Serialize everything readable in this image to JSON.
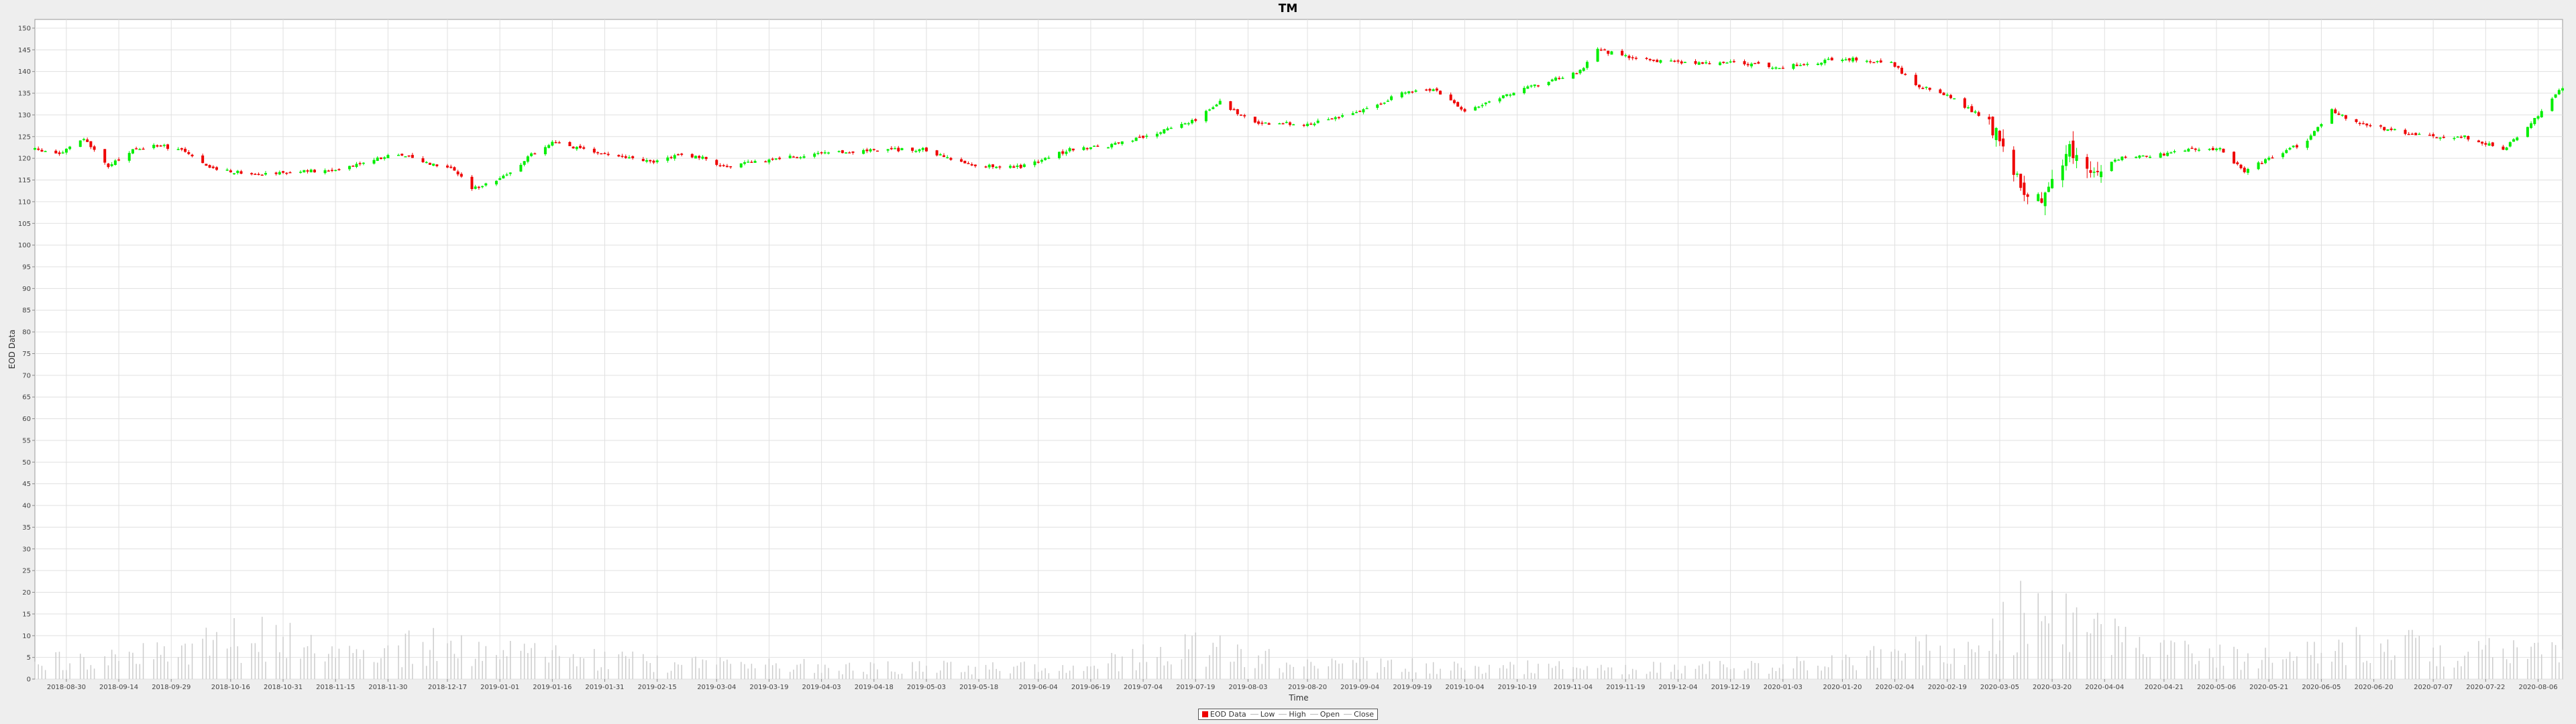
{
  "chart_data": {
    "type": "candlestick",
    "title": "TM",
    "xlabel": "Time",
    "ylabel": "EOD Data",
    "ylim": [
      0,
      152
    ],
    "yticks": [
      0,
      5,
      10,
      15,
      20,
      25,
      30,
      35,
      40,
      45,
      50,
      55,
      60,
      65,
      70,
      75,
      80,
      85,
      90,
      95,
      100,
      105,
      110,
      115,
      120,
      125,
      130,
      135,
      140,
      145,
      150
    ],
    "xlim": [
      "2018-08-21",
      "2020-08-13"
    ],
    "xticks": [
      "2018-08-30",
      "2018-09-14",
      "2018-09-29",
      "2018-10-16",
      "2018-10-31",
      "2018-11-15",
      "2018-11-30",
      "2018-12-17",
      "2019-01-01",
      "2019-01-16",
      "2019-01-31",
      "2019-02-15",
      "2019-03-04",
      "2019-03-19",
      "2019-04-03",
      "2019-04-18",
      "2019-05-03",
      "2019-05-18",
      "2019-06-04",
      "2019-06-19",
      "2019-07-04",
      "2019-07-19",
      "2019-08-03",
      "2019-08-20",
      "2019-09-04",
      "2019-09-19",
      "2019-10-04",
      "2019-10-19",
      "2019-11-04",
      "2019-11-19",
      "2019-12-04",
      "2019-12-19",
      "2020-01-03",
      "2020-01-20",
      "2020-02-04",
      "2020-02-19",
      "2020-03-05",
      "2020-03-20",
      "2020-04-04",
      "2020-04-21",
      "2020-05-06",
      "2020-05-21",
      "2020-06-05",
      "2020-06-20",
      "2020-07-07",
      "2020-07-22",
      "2020-08-06"
    ],
    "grid": true,
    "legend_position": "bottom-center",
    "legend": [
      "EOD Data",
      "Low",
      "High",
      "Open",
      "Close"
    ],
    "colors": {
      "up": "#00ee00",
      "down": "#ee0000",
      "volume": "#cccccc",
      "grid": "#e0e0e0"
    },
    "close_anchors": [
      [
        "2018-08-21",
        122
      ],
      [
        "2018-08-28",
        121
      ],
      [
        "2018-09-04",
        124.5
      ],
      [
        "2018-09-11",
        118
      ],
      [
        "2018-09-18",
        122
      ],
      [
        "2018-09-25",
        123
      ],
      [
        "2018-10-02",
        122
      ],
      [
        "2018-10-09",
        118
      ],
      [
        "2018-10-16",
        117
      ],
      [
        "2018-10-23",
        116.5
      ],
      [
        "2018-11-06",
        117
      ],
      [
        "2018-11-13",
        117
      ],
      [
        "2018-11-27",
        120
      ],
      [
        "2018-12-04",
        121
      ],
      [
        "2018-12-11",
        119
      ],
      [
        "2018-12-18",
        118
      ],
      [
        "2018-12-24",
        113
      ],
      [
        "2019-01-03",
        116
      ],
      [
        "2019-01-10",
        121
      ],
      [
        "2019-01-17",
        124
      ],
      [
        "2019-01-24",
        122
      ],
      [
        "2019-02-07",
        120
      ],
      [
        "2019-02-14",
        119
      ],
      [
        "2019-02-21",
        121
      ],
      [
        "2019-02-28",
        120
      ],
      [
        "2019-03-07",
        118
      ],
      [
        "2019-03-21",
        120
      ],
      [
        "2019-04-04",
        121
      ],
      [
        "2019-04-18",
        122
      ],
      [
        "2019-05-02",
        122
      ],
      [
        "2019-05-09",
        120
      ],
      [
        "2019-05-16",
        118.5
      ],
      [
        "2019-05-30",
        118
      ],
      [
        "2019-06-13",
        122
      ],
      [
        "2019-06-25",
        123
      ],
      [
        "2019-07-05",
        125
      ],
      [
        "2019-07-19",
        129
      ],
      [
        "2019-07-26",
        133
      ],
      [
        "2019-08-05",
        128
      ],
      [
        "2019-08-20",
        128
      ],
      [
        "2019-09-05",
        131
      ],
      [
        "2019-09-16",
        135
      ],
      [
        "2019-09-25",
        136
      ],
      [
        "2019-10-04",
        131
      ],
      [
        "2019-10-14",
        134
      ],
      [
        "2019-10-25",
        137
      ],
      [
        "2019-11-06",
        140
      ],
      [
        "2019-11-11",
        145
      ],
      [
        "2019-11-22",
        143
      ],
      [
        "2019-12-06",
        142
      ],
      [
        "2019-12-20",
        142
      ],
      [
        "2020-01-03",
        141
      ],
      [
        "2020-01-20",
        143
      ],
      [
        "2020-02-03",
        142
      ],
      [
        "2020-02-10",
        137
      ],
      [
        "2020-02-20",
        134
      ],
      [
        "2020-02-28",
        130
      ],
      [
        "2020-03-05",
        125
      ],
      [
        "2020-03-11",
        113
      ],
      [
        "2020-03-18",
        111
      ],
      [
        "2020-03-25",
        122
      ],
      [
        "2020-04-01",
        117
      ],
      [
        "2020-04-08",
        120
      ],
      [
        "2020-04-21",
        121
      ],
      [
        "2020-04-29",
        122
      ],
      [
        "2020-05-07",
        122
      ],
      [
        "2020-05-14",
        117
      ],
      [
        "2020-05-21",
        120
      ],
      [
        "2020-06-01",
        124
      ],
      [
        "2020-06-08",
        131
      ],
      [
        "2020-06-15",
        128
      ],
      [
        "2020-06-22",
        127
      ],
      [
        "2020-07-06",
        125
      ],
      [
        "2020-07-16",
        125
      ],
      [
        "2020-07-27",
        122
      ],
      [
        "2020-08-03",
        127
      ],
      [
        "2020-08-12",
        136
      ]
    ],
    "volume_anchors": [
      [
        "2018-08-21",
        4
      ],
      [
        "2018-09-20",
        6
      ],
      [
        "2018-10-10",
        9
      ],
      [
        "2018-10-25",
        11
      ],
      [
        "2018-11-15",
        6
      ],
      [
        "2018-12-20",
        9
      ],
      [
        "2019-01-10",
        6
      ],
      [
        "2019-02-15",
        4
      ],
      [
        "2019-04-15",
        3
      ],
      [
        "2019-06-15",
        3
      ],
      [
        "2019-07-19",
        8
      ],
      [
        "2019-08-15",
        4
      ],
      [
        "2019-10-15",
        3
      ],
      [
        "2019-12-15",
        3
      ],
      [
        "2020-01-15",
        4
      ],
      [
        "2020-02-20",
        8
      ],
      [
        "2020-03-05",
        12
      ],
      [
        "2020-03-16",
        19
      ],
      [
        "2020-03-25",
        14
      ],
      [
        "2020-04-15",
        7
      ],
      [
        "2020-05-15",
        5
      ],
      [
        "2020-06-10",
        7
      ],
      [
        "2020-06-20",
        10
      ],
      [
        "2020-07-15",
        6
      ],
      [
        "2020-08-12",
        8
      ]
    ]
  }
}
